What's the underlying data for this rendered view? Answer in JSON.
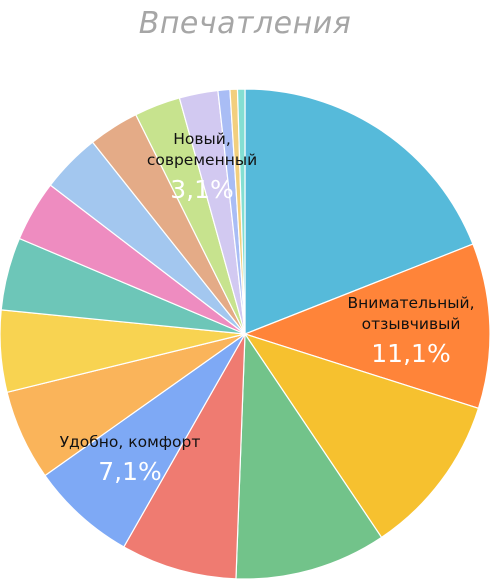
{
  "chart_data": {
    "type": "pie",
    "title": "Впечатления",
    "slices": [
      {
        "label": "",
        "value": 19.4,
        "color": "#56bada"
      },
      {
        "label": "Внимательный, отзывчивый",
        "value": 11.1,
        "color": "#ff8439"
      },
      {
        "label": "",
        "value": 10.9,
        "color": "#f6c12f"
      },
      {
        "label": "",
        "value": 10.2,
        "color": "#72c38a"
      },
      {
        "label": "",
        "value": 7.8,
        "color": "#ef7b71"
      },
      {
        "label": "Удобно, комфорт",
        "value": 7.1,
        "color": "#7ea9f5"
      },
      {
        "label": "",
        "value": 6.1,
        "color": "#fab45a"
      },
      {
        "label": "",
        "value": 5.5,
        "color": "#f8d351"
      },
      {
        "label": "",
        "value": 4.9,
        "color": "#6dc6b8"
      },
      {
        "label": "",
        "value": 4.1,
        "color": "#ee8cc0"
      },
      {
        "label": "",
        "value": 4.0,
        "color": "#a3c7ef"
      },
      {
        "label": "",
        "value": 3.4,
        "color": "#e4ab87"
      },
      {
        "label": "Новый, современный",
        "value": 3.1,
        "color": "#c7e38e"
      },
      {
        "label": "",
        "value": 2.6,
        "color": "#d2c9f1"
      },
      {
        "label": "",
        "value": 0.8,
        "color": "#a9bdf5"
      },
      {
        "label": "",
        "value": 0.5,
        "color": "#f2cf7e"
      },
      {
        "label": "",
        "value": 0.5,
        "color": "#84dfd2"
      }
    ],
    "value_labels": [
      "11,1%",
      "7,1%",
      "3,1%"
    ]
  }
}
